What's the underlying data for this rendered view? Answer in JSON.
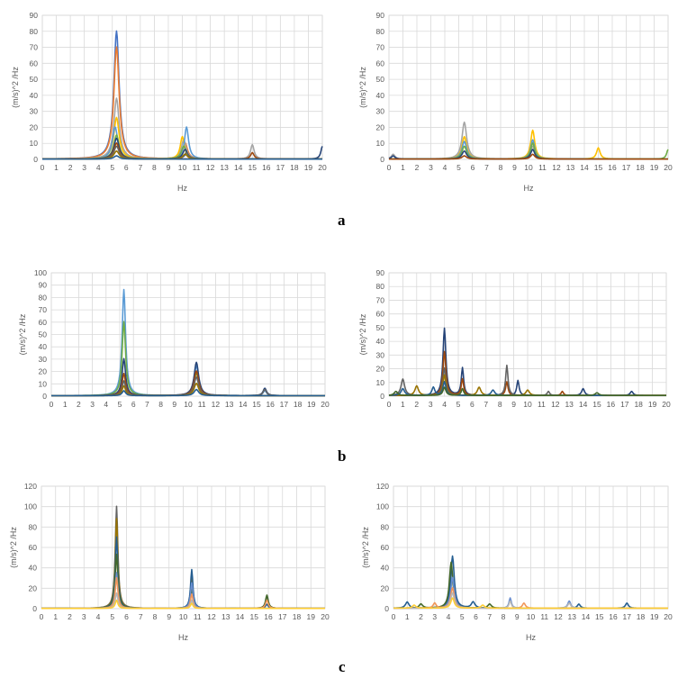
{
  "panel_labels": [
    "a",
    "b",
    "c"
  ],
  "palette": [
    "#4472C4",
    "#ED7D31",
    "#A5A5A5",
    "#FFC000",
    "#5B9BD5",
    "#70AD47",
    "#264478",
    "#9E480E",
    "#636363",
    "#997300",
    "#255E91",
    "#43682B",
    "#698ED0",
    "#F1975A",
    "#B7B7B7",
    "#FFCD33",
    "#7CAFDD",
    "#8CC168"
  ],
  "chart_data": [
    {
      "id": "a-left",
      "type": "line",
      "xlabel": "Hz",
      "ylabel": "(m/s)^2 /Hz",
      "xlim": [
        0,
        20
      ],
      "ylim": [
        0,
        90
      ],
      "yticks": [
        0,
        10,
        20,
        30,
        40,
        50,
        60,
        70,
        80,
        90
      ],
      "x_tick_labels": [
        "0",
        "1",
        "2",
        "3",
        "4",
        "5",
        "6",
        "7",
        "8",
        "9",
        "10",
        "11",
        "12",
        "13",
        "14",
        "15",
        "16",
        "17",
        "18",
        "19",
        "20"
      ],
      "grid": true,
      "legend": "none",
      "series": [
        {
          "peaks": [
            [
              5.3,
              80,
              0.45
            ],
            [
              10.3,
              3,
              0.4
            ]
          ],
          "base": 0.2
        },
        {
          "peaks": [
            [
              5.3,
              70,
              0.45
            ],
            [
              10.2,
              10,
              0.4
            ]
          ],
          "base": 0.2
        },
        {
          "peaks": [
            [
              5.3,
              38,
              0.45
            ],
            [
              10.1,
              12,
              0.4
            ],
            [
              15,
              9,
              0.3
            ]
          ],
          "base": 0.2
        },
        {
          "peaks": [
            [
              5.3,
              26,
              0.45
            ],
            [
              10.0,
              14,
              0.35
            ]
          ],
          "base": 0.2
        },
        {
          "peaks": [
            [
              5.2,
              20,
              0.45
            ],
            [
              10.3,
              20,
              0.35
            ]
          ],
          "base": 0.2
        },
        {
          "peaks": [
            [
              5.3,
              15,
              0.45
            ],
            [
              10.1,
              8,
              0.4
            ]
          ],
          "base": 0.2
        },
        {
          "peaks": [
            [
              5.3,
              13,
              0.45
            ],
            [
              10.2,
              6,
              0.4
            ],
            [
              20,
              8,
              0.25
            ]
          ],
          "base": 0.2
        },
        {
          "peaks": [
            [
              5.3,
              10,
              0.45
            ],
            [
              15,
              4,
              0.3
            ]
          ],
          "base": 0.2
        },
        {
          "peaks": [
            [
              5.3,
              8,
              0.45
            ],
            [
              10.3,
              4,
              0.4
            ]
          ],
          "base": 0.2
        },
        {
          "peaks": [
            [
              5.3,
              5,
              0.45
            ],
            [
              10.2,
              3,
              0.4
            ]
          ],
          "base": 0.2
        },
        {
          "peaks": [
            [
              5.3,
              2,
              0.45
            ]
          ],
          "base": 0.2
        }
      ]
    },
    {
      "id": "a-right",
      "type": "line",
      "xlabel": "Hz",
      "ylabel": "(m/s)^2 /Hz",
      "xlim": [
        0,
        20
      ],
      "ylim": [
        0,
        90
      ],
      "yticks": [
        0,
        10,
        20,
        30,
        40,
        50,
        60,
        70,
        80,
        90
      ],
      "x_tick_labels": [
        "0",
        "1",
        "2",
        "3",
        "4",
        "5",
        "6",
        "7",
        "8",
        "9",
        "10",
        "11",
        "12",
        "13",
        "14",
        "15",
        "16",
        "17",
        "18",
        "19",
        "20"
      ],
      "grid": true,
      "legend": "none",
      "series": [
        {
          "peaks": [
            [
              5.4,
              23,
              0.4
            ],
            [
              10.3,
              8,
              0.35
            ],
            [
              0.3,
              3,
              0.3
            ]
          ],
          "base": 0.2
        },
        {
          "peaks": [
            [
              5.4,
              14,
              0.4
            ],
            [
              10.3,
              18,
              0.35
            ],
            [
              15,
              7,
              0.3
            ]
          ],
          "base": 0.2
        },
        {
          "peaks": [
            [
              5.4,
              11,
              0.4
            ],
            [
              10.3,
              12,
              0.35
            ]
          ],
          "base": 0.2
        },
        {
          "peaks": [
            [
              5.4,
              8,
              0.4
            ],
            [
              10.3,
              10,
              0.35
            ],
            [
              20,
              6,
              0.25
            ]
          ],
          "base": 0.2
        },
        {
          "peaks": [
            [
              5.4,
              5,
              0.4
            ],
            [
              10.3,
              6,
              0.35
            ],
            [
              0.3,
              2,
              0.3
            ]
          ],
          "base": 0.2
        },
        {
          "peaks": [
            [
              5.4,
              2,
              0.4
            ],
            [
              10.3,
              3,
              0.35
            ]
          ],
          "base": 0.2
        }
      ]
    },
    {
      "id": "b-left",
      "type": "line",
      "xlabel": "",
      "ylabel": "(m/s)^2 /Hz",
      "xlim": [
        0,
        20
      ],
      "ylim": [
        0,
        100
      ],
      "yticks": [
        0,
        10,
        20,
        30,
        40,
        50,
        60,
        70,
        80,
        90,
        100
      ],
      "x_tick_labels": [
        "0",
        "1",
        "2",
        "3",
        "4",
        "5",
        "6",
        "7",
        "8",
        "9",
        "10",
        "11",
        "12",
        "13",
        "14",
        "15",
        "16",
        "17",
        "18",
        "19",
        "20"
      ],
      "grid": true,
      "legend": "none",
      "series": [
        {
          "peaks": [
            [
              5.3,
              86,
              0.3
            ],
            [
              10.6,
              24,
              0.4
            ],
            [
              15.6,
              4,
              0.3
            ]
          ],
          "base": 0.4
        },
        {
          "peaks": [
            [
              5.3,
              60,
              0.3
            ],
            [
              10.6,
              18,
              0.4
            ]
          ],
          "base": 0.4
        },
        {
          "peaks": [
            [
              5.3,
              30,
              0.3
            ],
            [
              10.6,
              27,
              0.4
            ],
            [
              15.6,
              6,
              0.3
            ]
          ],
          "base": 0.4
        },
        {
          "peaks": [
            [
              5.3,
              18,
              0.3
            ],
            [
              10.6,
              20,
              0.4
            ]
          ],
          "base": 0.4
        },
        {
          "peaks": [
            [
              5.3,
              12,
              0.3
            ],
            [
              10.6,
              15,
              0.4
            ],
            [
              15.6,
              5,
              0.3
            ]
          ],
          "base": 0.4
        },
        {
          "peaks": [
            [
              5.3,
              8,
              0.3
            ],
            [
              10.6,
              10,
              0.4
            ]
          ],
          "base": 0.4
        },
        {
          "peaks": [
            [
              5.3,
              4,
              0.3
            ],
            [
              10.6,
              5,
              0.4
            ]
          ],
          "base": 0.4
        }
      ]
    },
    {
      "id": "b-right",
      "type": "line",
      "xlabel": "",
      "ylabel": "(m/s)^2 /Hz",
      "xlim": [
        0,
        20
      ],
      "ylim": [
        0,
        90
      ],
      "yticks": [
        0,
        10,
        20,
        30,
        40,
        50,
        60,
        70,
        80,
        90
      ],
      "x_tick_labels": [
        "0",
        "1",
        "2",
        "3",
        "4",
        "5",
        "6",
        "7",
        "8",
        "9",
        "10",
        "11",
        "12",
        "13",
        "14",
        "15",
        "16",
        "17",
        "18",
        "19",
        "20"
      ],
      "grid": true,
      "legend": "none",
      "series": [
        {
          "peaks": [
            [
              4.0,
              49,
              0.25
            ],
            [
              5.3,
              20,
              0.2
            ],
            [
              9.3,
              11,
              0.2
            ],
            [
              14,
              5,
              0.25
            ],
            [
              17.5,
              3,
              0.25
            ]
          ],
          "base": 0.5
        },
        {
          "peaks": [
            [
              4.0,
              32,
              0.25
            ],
            [
              5.3,
              12,
              0.2
            ],
            [
              8.5,
              10,
              0.2
            ],
            [
              12.5,
              3,
              0.2
            ]
          ],
          "base": 0.5
        },
        {
          "peaks": [
            [
              1.0,
              12,
              0.3
            ],
            [
              4.0,
              20,
              0.25
            ],
            [
              8.5,
              22,
              0.2
            ],
            [
              11.5,
              3,
              0.2
            ]
          ],
          "base": 0.5
        },
        {
          "peaks": [
            [
              2.0,
              7,
              0.3
            ],
            [
              4.0,
              15,
              0.25
            ],
            [
              6.5,
              6,
              0.3
            ],
            [
              10,
              4,
              0.3
            ]
          ],
          "base": 0.5
        },
        {
          "peaks": [
            [
              1.0,
              5,
              0.3
            ],
            [
              3.2,
              6,
              0.25
            ],
            [
              4.0,
              10,
              0.25
            ],
            [
              7.5,
              4,
              0.3
            ]
          ],
          "base": 0.5
        },
        {
          "peaks": [
            [
              0.5,
              3,
              0.3
            ],
            [
              4.0,
              6,
              0.25
            ],
            [
              5.3,
              5,
              0.2
            ],
            [
              15,
              2,
              0.3
            ]
          ],
          "base": 0.5
        }
      ]
    },
    {
      "id": "c-left",
      "type": "line",
      "xlabel": "Hz",
      "ylabel": "(m/s)^2 /Hz",
      "xlim": [
        0,
        20
      ],
      "ylim": [
        0,
        120
      ],
      "yticks": [
        0,
        20,
        40,
        60,
        80,
        100,
        120
      ],
      "x_tick_labels": [
        "0",
        "1",
        "2",
        "3",
        "4",
        "5",
        "6",
        "7",
        "8",
        "9",
        "10",
        "11",
        "12",
        "13",
        "14",
        "15",
        "16",
        "17",
        "18",
        "19",
        "20"
      ],
      "grid": true,
      "legend": "none",
      "series": [
        {
          "peaks": [
            [
              5.3,
              100,
              0.22
            ],
            [
              10.6,
              22,
              0.2
            ],
            [
              15.9,
              12,
              0.22
            ]
          ],
          "base": 0.3
        },
        {
          "peaks": [
            [
              5.3,
              88,
              0.22
            ],
            [
              10.6,
              30,
              0.2
            ]
          ],
          "base": 0.3
        },
        {
          "peaks": [
            [
              5.3,
              70,
              0.22
            ],
            [
              10.6,
              38,
              0.2
            ],
            [
              15.9,
              4,
              0.22
            ]
          ],
          "base": 0.3
        },
        {
          "peaks": [
            [
              5.3,
              53,
              0.22
            ],
            [
              10.6,
              18,
              0.2
            ],
            [
              15.9,
              13,
              0.22
            ]
          ],
          "base": 0.3
        },
        {
          "peaks": [
            [
              5.3,
              35,
              0.22
            ],
            [
              10.6,
              25,
              0.2
            ]
          ],
          "base": 0.3
        },
        {
          "peaks": [
            [
              5.3,
              30,
              0.22
            ],
            [
              10.6,
              14,
              0.2
            ],
            [
              15.9,
              8,
              0.22
            ]
          ],
          "base": 0.3
        },
        {
          "peaks": [
            [
              5.3,
              15,
              0.22
            ],
            [
              10.6,
              8,
              0.2
            ]
          ],
          "base": 0.3
        },
        {
          "peaks": [
            [
              5.3,
              8,
              0.22
            ],
            [
              10.6,
              5,
              0.2
            ]
          ],
          "base": 0.3
        }
      ]
    },
    {
      "id": "c-right",
      "type": "line",
      "xlabel": "Hz",
      "ylabel": "(m/s)^2 /Hz",
      "xlim": [
        0,
        20
      ],
      "ylim": [
        0,
        120
      ],
      "yticks": [
        0,
        20,
        40,
        60,
        80,
        100,
        120
      ],
      "x_tick_labels": [
        "0",
        "1",
        "2",
        "3",
        "4",
        "5",
        "6",
        "7",
        "8",
        "9",
        "10",
        "11",
        "12",
        "13",
        "14",
        "15",
        "16",
        "17",
        "18",
        "19",
        "20"
      ],
      "grid": true,
      "legend": "none",
      "series": [
        {
          "peaks": [
            [
              4.3,
              51,
              0.3
            ],
            [
              1.0,
              6,
              0.3
            ],
            [
              5.8,
              6,
              0.3
            ],
            [
              13.5,
              4,
              0.25
            ],
            [
              17,
              5,
              0.25
            ]
          ],
          "base": 0.5
        },
        {
          "peaks": [
            [
              4.2,
              45,
              0.3
            ],
            [
              2.0,
              4,
              0.3
            ],
            [
              7,
              4,
              0.3
            ]
          ],
          "base": 0.5
        },
        {
          "peaks": [
            [
              4.3,
              30,
              0.3
            ],
            [
              8.5,
              10,
              0.2
            ],
            [
              12.8,
              7,
              0.25
            ]
          ],
          "base": 0.5
        },
        {
          "peaks": [
            [
              4.3,
              20,
              0.3
            ],
            [
              3.0,
              5,
              0.25
            ],
            [
              9.5,
              5,
              0.25
            ]
          ],
          "base": 0.5
        },
        {
          "peaks": [
            [
              4.3,
              15,
              0.3
            ],
            [
              8.5,
              7,
              0.2
            ],
            [
              12.8,
              5,
              0.25
            ]
          ],
          "base": 0.5
        },
        {
          "peaks": [
            [
              4.3,
              10,
              0.3
            ],
            [
              1.5,
              3,
              0.3
            ],
            [
              6.5,
              3,
              0.3
            ]
          ],
          "base": 0.5
        }
      ]
    }
  ]
}
